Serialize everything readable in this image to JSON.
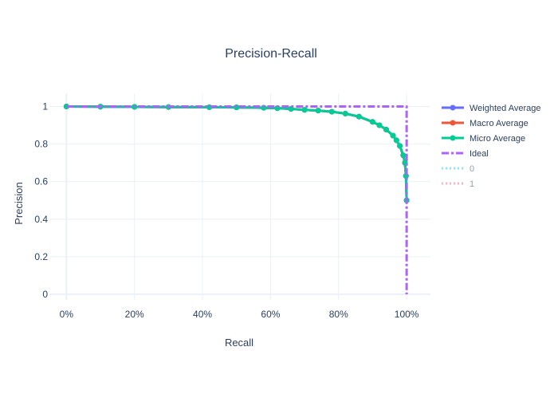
{
  "chart_data": {
    "type": "line",
    "title": "Precision-Recall",
    "xlabel": "Recall",
    "ylabel": "Precision",
    "xlim": [
      -0.05,
      1.07
    ],
    "ylim": [
      -0.03,
      1.07
    ],
    "x_tick_values": [
      0,
      0.2,
      0.4,
      0.6,
      0.8,
      1.0
    ],
    "x_tick_labels": [
      "0%",
      "20%",
      "40%",
      "60%",
      "80%",
      "100%"
    ],
    "y_tick_values": [
      0,
      0.2,
      0.4,
      0.6,
      0.8,
      1.0
    ],
    "y_tick_labels": [
      "0",
      "0.2",
      "0.4",
      "0.6",
      "0.8",
      "1"
    ],
    "grid": true,
    "legend_position": "right",
    "series": [
      {
        "name": "Weighted Average",
        "color": "#636efa",
        "style": "lines+markers",
        "legend_visible": true,
        "x": [
          0,
          0.1,
          0.2,
          0.3,
          0.42,
          0.5,
          0.58,
          0.62,
          0.66,
          0.7,
          0.74,
          0.78,
          0.82,
          0.86,
          0.9,
          0.92,
          0.94,
          0.96,
          0.97,
          0.98,
          0.99,
          0.995,
          0.998,
          1.0
        ],
        "y": [
          1.0,
          0.999,
          0.998,
          0.997,
          0.996,
          0.995,
          0.993,
          0.991,
          0.987,
          0.982,
          0.978,
          0.972,
          0.962,
          0.946,
          0.918,
          0.9,
          0.877,
          0.845,
          0.82,
          0.79,
          0.74,
          0.7,
          0.63,
          0.5
        ]
      },
      {
        "name": "Macro Average",
        "color": "#ef553b",
        "style": "lines+markers",
        "legend_visible": true,
        "x": [
          0,
          0.1,
          0.2,
          0.3,
          0.42,
          0.5,
          0.58,
          0.62,
          0.66,
          0.7,
          0.74,
          0.78,
          0.82,
          0.86,
          0.9,
          0.92,
          0.94,
          0.96,
          0.97,
          0.98,
          0.99,
          0.995,
          0.998,
          1.0
        ],
        "y": [
          1.0,
          0.999,
          0.998,
          0.997,
          0.996,
          0.995,
          0.993,
          0.991,
          0.987,
          0.982,
          0.978,
          0.972,
          0.962,
          0.946,
          0.918,
          0.9,
          0.877,
          0.845,
          0.82,
          0.79,
          0.74,
          0.7,
          0.63,
          0.5
        ]
      },
      {
        "name": "Micro Average",
        "color": "#00cc96",
        "style": "lines+markers",
        "legend_visible": true,
        "x": [
          0,
          0.1,
          0.2,
          0.3,
          0.42,
          0.5,
          0.58,
          0.62,
          0.66,
          0.7,
          0.74,
          0.78,
          0.82,
          0.86,
          0.9,
          0.92,
          0.94,
          0.96,
          0.97,
          0.98,
          0.99,
          0.995,
          0.998,
          1.0
        ],
        "y": [
          1.0,
          0.999,
          0.998,
          0.997,
          0.996,
          0.995,
          0.993,
          0.991,
          0.987,
          0.982,
          0.978,
          0.972,
          0.962,
          0.946,
          0.918,
          0.9,
          0.877,
          0.845,
          0.82,
          0.79,
          0.74,
          0.7,
          0.63,
          0.5
        ]
      },
      {
        "name": "Ideal",
        "color": "#ab63fa",
        "style": "dashdot",
        "legend_visible": true,
        "x": [
          0,
          1.0,
          1.0
        ],
        "y": [
          1.0,
          1.0,
          0.0
        ]
      },
      {
        "name": "0",
        "color": "#19d3f3",
        "style": "dot",
        "legend_visible": false,
        "x": [],
        "y": []
      },
      {
        "name": "1",
        "color": "#ff6692",
        "style": "dot",
        "legend_visible": false,
        "x": [],
        "y": []
      }
    ]
  }
}
